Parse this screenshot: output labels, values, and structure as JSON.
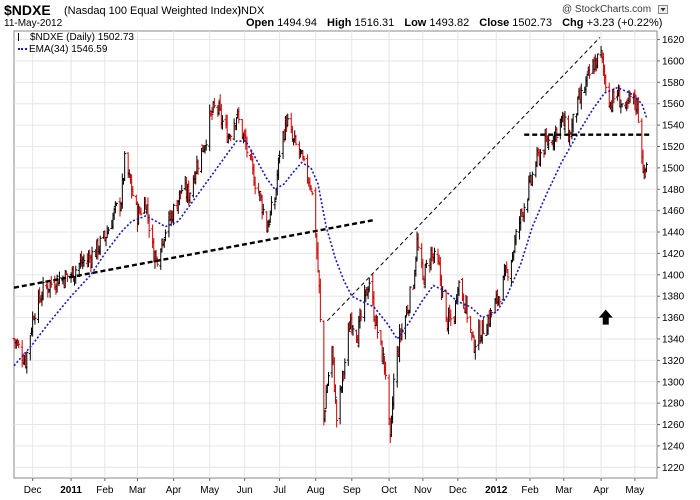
{
  "header": {
    "ticker": "$NDXE",
    "name": "(Nasdaq 100 Equal Weighted Index)",
    "exchange": "INDX",
    "date": "11-May-2012",
    "open_label": "Open",
    "open": "1494.94",
    "high_label": "High",
    "high": "1516.31",
    "low_label": "Low",
    "low": "1493.82",
    "close_label": "Close",
    "close": "1502.73",
    "chg_label": "Chg",
    "chg": "+3.23 (+0.22%)",
    "watermark": "@ StockCharts.com",
    "watermark_icon": "arrow-down-triangle-icon"
  },
  "legend": {
    "price": "$NDXE (Daily) 1502.73",
    "ema": "EMA(34) 1546.59"
  },
  "colors": {
    "up": "#000000",
    "down": "#cc0000",
    "ema": "#1a1ab4",
    "grid": "#e6e6e6"
  },
  "chart_data": {
    "type": "ohlc",
    "ylim": [
      1210,
      1628
    ],
    "y_ticks": [
      1220,
      1240,
      1260,
      1280,
      1300,
      1320,
      1340,
      1360,
      1380,
      1400,
      1420,
      1440,
      1460,
      1480,
      1500,
      1520,
      1540,
      1560,
      1580,
      1600,
      1620
    ],
    "x_ticks": [
      "Dec",
      "2011",
      "Feb",
      "Mar",
      "Apr",
      "May",
      "Jun",
      "Jul",
      "Aug",
      "Sep",
      "Oct",
      "Nov",
      "Dec",
      "2012",
      "Feb",
      "Mar",
      "Apr",
      "May"
    ],
    "x_tick_dates": [
      "2010-12-01",
      "2011-01-03",
      "2011-02-01",
      "2011-03-01",
      "2011-04-01",
      "2011-05-02",
      "2011-06-01",
      "2011-07-01",
      "2011-08-01",
      "2011-09-01",
      "2011-10-03",
      "2011-11-01",
      "2011-12-01",
      "2012-01-03",
      "2012-02-01",
      "2012-03-01",
      "2012-04-02",
      "2012-05-01"
    ],
    "x_range": [
      "2010-11-15",
      "2012-05-20"
    ],
    "grid": true,
    "close_path": [
      [
        "2010-11-15",
        1340
      ],
      [
        "2010-11-25",
        1320
      ],
      [
        "2010-12-02",
        1365
      ],
      [
        "2010-12-10",
        1385
      ],
      [
        "2010-12-20",
        1395
      ],
      [
        "2011-01-03",
        1400
      ],
      [
        "2011-01-10",
        1410
      ],
      [
        "2011-01-18",
        1415
      ],
      [
        "2011-01-26",
        1425
      ],
      [
        "2011-02-01",
        1435
      ],
      [
        "2011-02-08",
        1455
      ],
      [
        "2011-02-15",
        1470
      ],
      [
        "2011-02-18",
        1505
      ],
      [
        "2011-02-24",
        1480
      ],
      [
        "2011-03-01",
        1455
      ],
      [
        "2011-03-08",
        1470
      ],
      [
        "2011-03-14",
        1425
      ],
      [
        "2011-03-17",
        1415
      ],
      [
        "2011-03-24",
        1440
      ],
      [
        "2011-04-01",
        1460
      ],
      [
        "2011-04-08",
        1480
      ],
      [
        "2011-04-14",
        1475
      ],
      [
        "2011-04-20",
        1500
      ],
      [
        "2011-04-28",
        1525
      ],
      [
        "2011-05-02",
        1545
      ],
      [
        "2011-05-08",
        1560
      ],
      [
        "2011-05-12",
        1545
      ],
      [
        "2011-05-18",
        1530
      ],
      [
        "2011-05-25",
        1550
      ],
      [
        "2011-06-01",
        1525
      ],
      [
        "2011-06-08",
        1495
      ],
      [
        "2011-06-15",
        1470
      ],
      [
        "2011-06-20",
        1445
      ],
      [
        "2011-06-27",
        1470
      ],
      [
        "2011-07-01",
        1515
      ],
      [
        "2011-07-07",
        1545
      ],
      [
        "2011-07-12",
        1525
      ],
      [
        "2011-07-18",
        1515
      ],
      [
        "2011-07-22",
        1500
      ],
      [
        "2011-07-28",
        1485
      ],
      [
        "2011-08-01",
        1440
      ],
      [
        "2011-08-04",
        1385
      ],
      [
        "2011-08-08",
        1265
      ],
      [
        "2011-08-10",
        1290
      ],
      [
        "2011-08-15",
        1330
      ],
      [
        "2011-08-19",
        1265
      ],
      [
        "2011-08-25",
        1310
      ],
      [
        "2011-08-31",
        1360
      ],
      [
        "2011-09-06",
        1345
      ],
      [
        "2011-09-12",
        1375
      ],
      [
        "2011-09-16",
        1395
      ],
      [
        "2011-09-20",
        1365
      ],
      [
        "2011-09-26",
        1330
      ],
      [
        "2011-09-30",
        1310
      ],
      [
        "2011-10-04",
        1240
      ],
      [
        "2011-10-07",
        1300
      ],
      [
        "2011-10-12",
        1340
      ],
      [
        "2011-10-18",
        1365
      ],
      [
        "2011-10-24",
        1395
      ],
      [
        "2011-10-27",
        1430
      ],
      [
        "2011-11-01",
        1395
      ],
      [
        "2011-11-08",
        1420
      ],
      [
        "2011-11-15",
        1405
      ],
      [
        "2011-11-21",
        1355
      ],
      [
        "2011-11-28",
        1360
      ],
      [
        "2011-12-01",
        1395
      ],
      [
        "2011-12-08",
        1370
      ],
      [
        "2011-12-14",
        1335
      ],
      [
        "2011-12-20",
        1345
      ],
      [
        "2011-12-28",
        1360
      ],
      [
        "2012-01-03",
        1375
      ],
      [
        "2012-01-10",
        1395
      ],
      [
        "2012-01-17",
        1420
      ],
      [
        "2012-01-24",
        1455
      ],
      [
        "2012-01-31",
        1480
      ],
      [
        "2012-02-06",
        1505
      ],
      [
        "2012-02-13",
        1520
      ],
      [
        "2012-02-21",
        1530
      ],
      [
        "2012-02-28",
        1545
      ],
      [
        "2012-03-06",
        1530
      ],
      [
        "2012-03-12",
        1555
      ],
      [
        "2012-03-19",
        1575
      ],
      [
        "2012-03-26",
        1595
      ],
      [
        "2012-04-02",
        1605
      ],
      [
        "2012-04-05",
        1585
      ],
      [
        "2012-04-10",
        1560
      ],
      [
        "2012-04-16",
        1570
      ],
      [
        "2012-04-23",
        1550
      ],
      [
        "2012-04-27",
        1565
      ],
      [
        "2012-05-03",
        1560
      ],
      [
        "2012-05-07",
        1515
      ],
      [
        "2012-05-09",
        1490
      ],
      [
        "2012-05-11",
        1503
      ]
    ],
    "ema_path": [
      [
        "2010-11-15",
        1315
      ],
      [
        "2010-12-01",
        1335
      ],
      [
        "2010-12-15",
        1355
      ],
      [
        "2011-01-03",
        1380
      ],
      [
        "2011-01-20",
        1400
      ],
      [
        "2011-02-01",
        1420
      ],
      [
        "2011-02-15",
        1440
      ],
      [
        "2011-02-24",
        1450
      ],
      [
        "2011-03-08",
        1455
      ],
      [
        "2011-03-17",
        1450
      ],
      [
        "2011-03-25",
        1445
      ],
      [
        "2011-04-05",
        1450
      ],
      [
        "2011-04-15",
        1465
      ],
      [
        "2011-04-25",
        1480
      ],
      [
        "2011-05-05",
        1495
      ],
      [
        "2011-05-15",
        1510
      ],
      [
        "2011-05-25",
        1525
      ],
      [
        "2011-06-02",
        1525
      ],
      [
        "2011-06-10",
        1510
      ],
      [
        "2011-06-20",
        1490
      ],
      [
        "2011-06-27",
        1480
      ],
      [
        "2011-07-05",
        1485
      ],
      [
        "2011-07-12",
        1495
      ],
      [
        "2011-07-20",
        1505
      ],
      [
        "2011-07-28",
        1500
      ],
      [
        "2011-08-03",
        1485
      ],
      [
        "2011-08-10",
        1445
      ],
      [
        "2011-08-18",
        1415
      ],
      [
        "2011-08-25",
        1395
      ],
      [
        "2011-09-01",
        1380
      ],
      [
        "2011-09-10",
        1375
      ],
      [
        "2011-09-20",
        1370
      ],
      [
        "2011-10-01",
        1355
      ],
      [
        "2011-10-10",
        1340
      ],
      [
        "2011-10-20",
        1355
      ],
      [
        "2011-10-31",
        1375
      ],
      [
        "2011-11-10",
        1390
      ],
      [
        "2011-11-20",
        1385
      ],
      [
        "2011-12-01",
        1375
      ],
      [
        "2011-12-12",
        1370
      ],
      [
        "2011-12-22",
        1360
      ],
      [
        "2012-01-03",
        1365
      ],
      [
        "2012-01-12",
        1380
      ],
      [
        "2012-01-24",
        1410
      ],
      [
        "2012-02-03",
        1445
      ],
      [
        "2012-02-15",
        1475
      ],
      [
        "2012-02-28",
        1505
      ],
      [
        "2012-03-12",
        1530
      ],
      [
        "2012-03-26",
        1555
      ],
      [
        "2012-04-05",
        1570
      ],
      [
        "2012-04-16",
        1575
      ],
      [
        "2012-04-27",
        1570
      ],
      [
        "2012-05-07",
        1560
      ],
      [
        "2012-05-11",
        1547
      ]
    ],
    "annotations": [
      {
        "kind": "trendline",
        "style": "dashed-thick",
        "from": [
          "2010-11-15",
          1388
        ],
        "to": [
          "2011-09-19",
          1451
        ]
      },
      {
        "kind": "trendline",
        "style": "dashed-thin",
        "from": [
          "2011-08-11",
          1357
        ],
        "to": [
          "2012-04-01",
          1622
        ]
      },
      {
        "kind": "trendline",
        "style": "dashed-thick",
        "from": [
          "2012-01-27",
          1531
        ],
        "to": [
          "2012-05-14",
          1531
        ]
      },
      {
        "kind": "arrow-up",
        "at": [
          "2012-04-06",
          1360
        ]
      }
    ]
  }
}
